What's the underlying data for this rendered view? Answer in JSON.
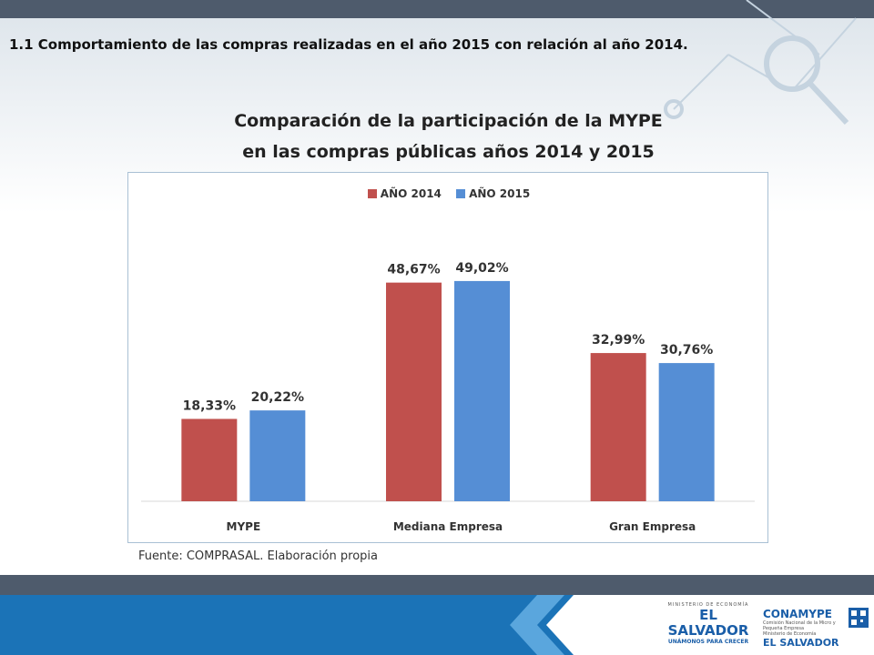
{
  "heading": "1.1 Comportamiento de las compras realizadas en el año 2015 con relación al año 2014.",
  "source": "Fuente: COMPRASAL. Elaboración propia",
  "logos": {
    "elsalvador_ministry": "MINISTERIO DE ECONOMÍA",
    "elsalvador_main": "EL SALVADOR",
    "elsalvador_tagline": "UNÁMONOS PARA CRECER",
    "conamype_name": "CONAMYPE",
    "conamype_sub": "Comisión Nacional de la Micro y Pequeña Empresa",
    "conamype_ministry": "Ministerio de Economía",
    "conamype_country": "EL SALVADOR"
  },
  "chart_data": {
    "type": "bar",
    "title_line1": "Comparación de la participación de la MYPE",
    "title_line2": "en las compras públicas años  2014 y 2015",
    "categories": [
      "MYPE",
      "Mediana Empresa",
      "Gran Empresa"
    ],
    "series": [
      {
        "name": "AÑO 2014",
        "color": "#c0504d",
        "values": [
          18.33,
          48.67,
          32.99
        ],
        "labels": [
          "18,33%",
          "48,67%",
          "32,99%"
        ]
      },
      {
        "name": "AÑO 2015",
        "color": "#558ed5",
        "values": [
          20.22,
          49.02,
          30.76
        ],
        "labels": [
          "20,22%",
          "49,02%",
          "30,76%"
        ]
      }
    ],
    "ylim": [
      0,
      65
    ],
    "grid": false,
    "legend_position": "top-center"
  },
  "colors": {
    "bar_2014": "#c0504d",
    "bar_2015": "#558ed5",
    "top_bar": "#4e5b6c",
    "bottom_blue": "#1b73b7"
  }
}
